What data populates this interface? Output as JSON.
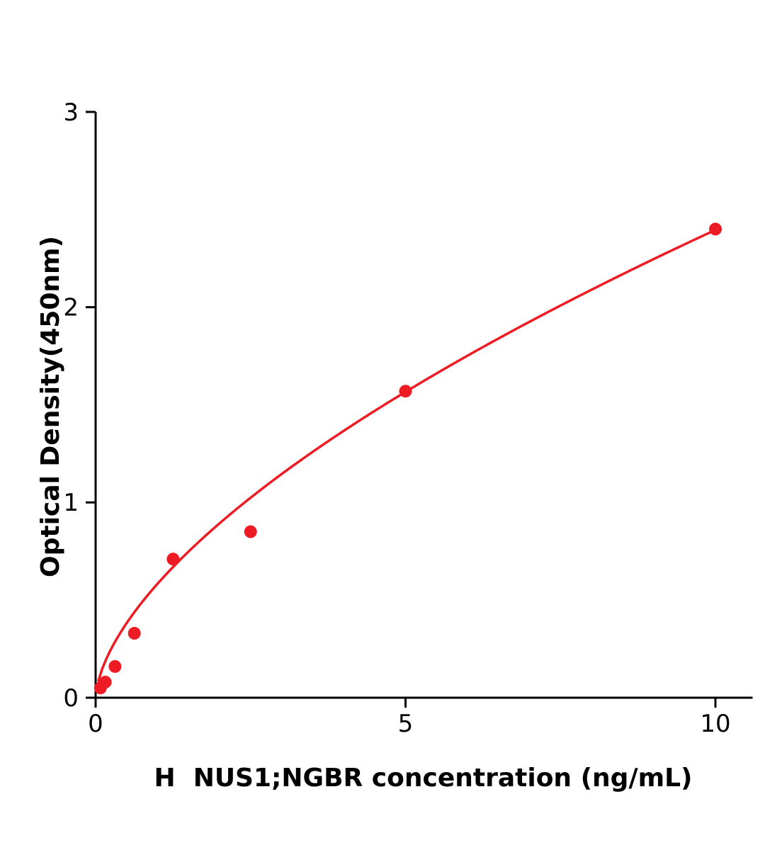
{
  "chart_data": {
    "type": "scatter",
    "title": "",
    "xlabel": "H  NUS1;NGBR concentration (ng/mL)",
    "ylabel": "Optical Density(450nm)",
    "x": [
      0.078,
      0.156,
      0.313,
      0.625,
      1.25,
      2.5,
      5,
      10
    ],
    "y": [
      0.05,
      0.08,
      0.16,
      0.33,
      0.71,
      0.85,
      1.57,
      2.4
    ],
    "xlim": [
      0,
      10.6
    ],
    "ylim": [
      0,
      3
    ],
    "x_ticks": [
      0,
      5,
      10
    ],
    "y_ticks": [
      0,
      1,
      2,
      3
    ],
    "grid": false,
    "legend": "none",
    "point_color": "#ed1c24",
    "line_color": "#ed1c24",
    "axis_color": "#000000",
    "fit": {
      "type": "power",
      "a": 0.584,
      "b": 0.613
    }
  }
}
